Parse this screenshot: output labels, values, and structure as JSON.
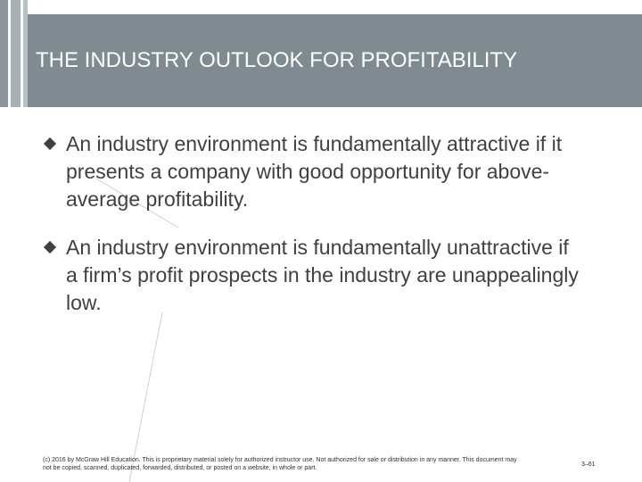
{
  "slide": {
    "title": "THE INDUSTRY OUTLOOK FOR PROFITABILITY",
    "bullets": [
      {
        "text": "An industry environment is fundamentally attractive if it presents a company with good opportunity for above-average profitability."
      },
      {
        "text": "An industry environment is fundamentally unattractive if a firm’s profit prospects in the industry are unappealingly low."
      }
    ],
    "footer": "(c) 2016 by McGraw Hill Education. This is proprietary material solely for authorized instructor use. Not authorized for sale or distribution in any manner. This document may not be copied, scanned, duplicated, forwarded, distributed, or posted on a website, in whole or part.",
    "page_number": "3–61"
  },
  "colors": {
    "title_bar": "#7f8b91",
    "title_text": "#ffffff",
    "body_text": "#404040"
  }
}
